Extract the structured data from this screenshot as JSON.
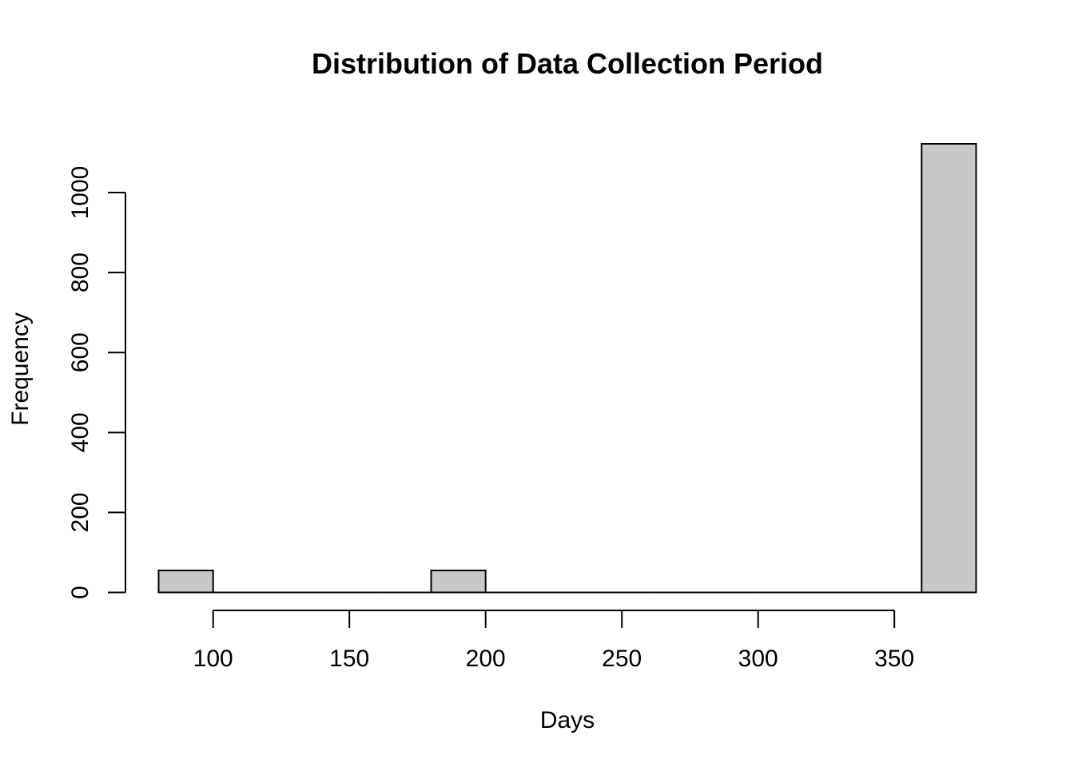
{
  "chart_data": {
    "type": "bar",
    "title": "Distribution of Data Collection Period",
    "xlabel": "Days",
    "ylabel": "Frequency",
    "bins": [
      {
        "start": 80,
        "end": 100,
        "count": 55
      },
      {
        "start": 100,
        "end": 120,
        "count": 0
      },
      {
        "start": 120,
        "end": 140,
        "count": 0
      },
      {
        "start": 140,
        "end": 160,
        "count": 0
      },
      {
        "start": 160,
        "end": 180,
        "count": 0
      },
      {
        "start": 180,
        "end": 200,
        "count": 55
      },
      {
        "start": 200,
        "end": 220,
        "count": 0
      },
      {
        "start": 220,
        "end": 240,
        "count": 0
      },
      {
        "start": 240,
        "end": 260,
        "count": 0
      },
      {
        "start": 260,
        "end": 280,
        "count": 0
      },
      {
        "start": 280,
        "end": 300,
        "count": 0
      },
      {
        "start": 300,
        "end": 320,
        "count": 0
      },
      {
        "start": 320,
        "end": 340,
        "count": 0
      },
      {
        "start": 340,
        "end": 360,
        "count": 0
      },
      {
        "start": 360,
        "end": 380,
        "count": 1122
      }
    ],
    "x_ticks": [
      100,
      150,
      200,
      250,
      300,
      350
    ],
    "y_ticks": [
      0,
      200,
      400,
      600,
      800,
      1000
    ],
    "xlim": [
      80,
      380
    ],
    "ylim": [
      0,
      1122
    ],
    "grid": false,
    "bar_fill": "#c8c8c8",
    "bar_stroke": "#000000"
  }
}
